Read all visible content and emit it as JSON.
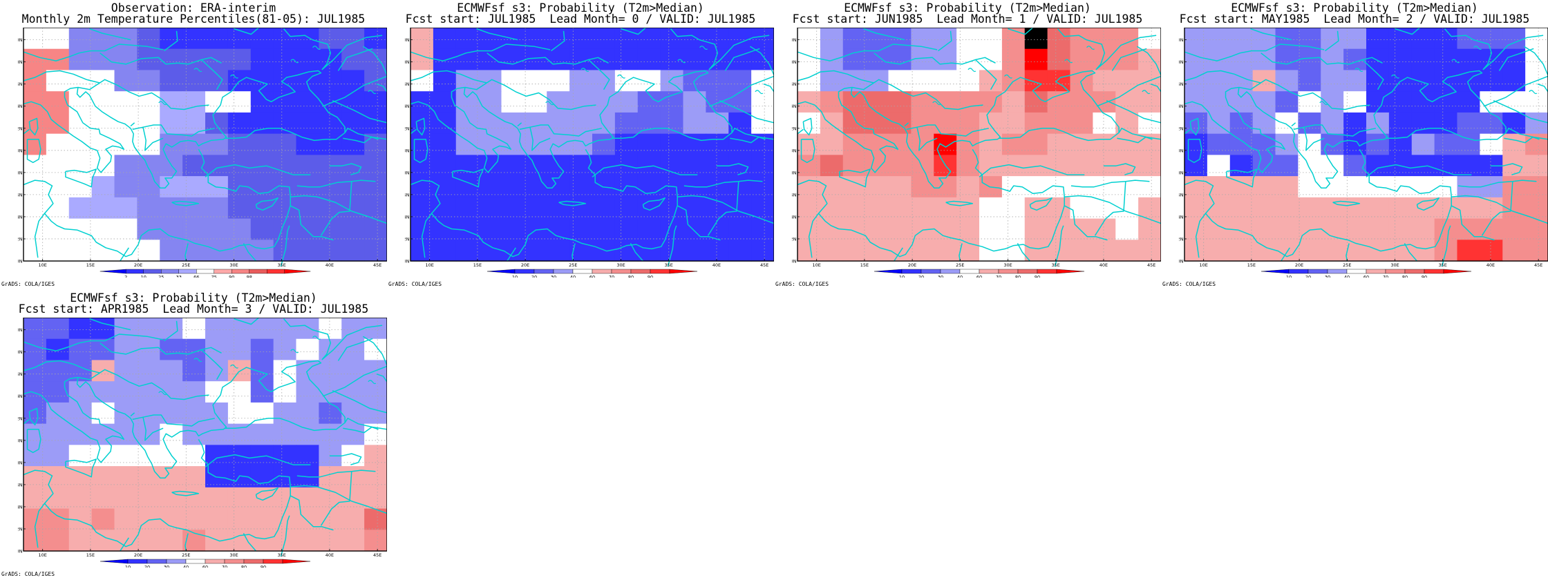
{
  "colors": {
    "scale_obs": [
      "#0000ff",
      "#3333ff",
      "#5c5ce9",
      "#8585f1",
      "#aaaaff",
      "#ffffff",
      "#ffaaaa",
      "#f78585",
      "#e95c5c",
      "#ff3333",
      "#ff0000"
    ],
    "scale_prob": [
      "#0000ff",
      "#3333ff",
      "#6363f3",
      "#9c9cf7",
      "#ffffff",
      "#f7adad",
      "#f48e8e",
      "#ec6b6b",
      "#ff3333",
      "#ff0000"
    ],
    "coast": "#00d0d0",
    "grid": "#a8a8a8"
  },
  "lat_labels": [
    "30N",
    "32N",
    "34N",
    "36N",
    "38N",
    "40N",
    "42N",
    "44N",
    "46N",
    "48N",
    "50N"
  ],
  "lon_labels": [
    "10E",
    "15E",
    "20E",
    "25E",
    "30E",
    "35E",
    "40E",
    "45E"
  ],
  "panels": [
    {
      "id": "obs",
      "title1": "Observation: ERA-interim",
      "title2": "Monthly 2m Temperature Percentiles(81-05): JUL1985",
      "credit": "GrADS: COLA/IGES",
      "legend": [
        "2",
        "10",
        "25",
        "33",
        "66",
        "75",
        "90",
        "98"
      ],
      "scale": "obs",
      "grid": [
        [
          5,
          5,
          3,
          3,
          3,
          2,
          1,
          1,
          1,
          1,
          1,
          1,
          1,
          2,
          2,
          1
        ],
        [
          7,
          7,
          3,
          3,
          3,
          2,
          2,
          2,
          2,
          2,
          1,
          1,
          1,
          1,
          2,
          2
        ],
        [
          7,
          5,
          5,
          5,
          3,
          3,
          2,
          2,
          2,
          1,
          1,
          1,
          1,
          1,
          1,
          2
        ],
        [
          7,
          7,
          5,
          5,
          5,
          5,
          4,
          4,
          5,
          5,
          1,
          1,
          1,
          1,
          1,
          1
        ],
        [
          7,
          7,
          5,
          5,
          5,
          5,
          4,
          4,
          2,
          1,
          1,
          1,
          1,
          1,
          1,
          1
        ],
        [
          7,
          5,
          5,
          5,
          5,
          5,
          3,
          3,
          3,
          2,
          2,
          2,
          1,
          1,
          1,
          2
        ],
        [
          5,
          5,
          5,
          5,
          3,
          3,
          3,
          2,
          2,
          2,
          2,
          2,
          2,
          2,
          2,
          2
        ],
        [
          5,
          5,
          5,
          4,
          3,
          3,
          4,
          4,
          4,
          2,
          2,
          2,
          2,
          2,
          2,
          2
        ],
        [
          5,
          5,
          4,
          4,
          4,
          3,
          3,
          3,
          3,
          2,
          2,
          2,
          2,
          2,
          2,
          2
        ],
        [
          5,
          5,
          5,
          5,
          5,
          3,
          3,
          3,
          3,
          3,
          2,
          2,
          2,
          2,
          2,
          2
        ],
        [
          5,
          5,
          5,
          5,
          5,
          5,
          3,
          3,
          3,
          3,
          3,
          2,
          2,
          2,
          2,
          2
        ]
      ]
    },
    {
      "id": "lead0",
      "title1": "ECMWFsf s3: Probability (T2m>Median)",
      "title2": "Fcst start: JUL1985  Lead Month= 0 / VALID: JUL1985",
      "credit": "GrADS: COLA/IGES",
      "legend": [
        "10",
        "20",
        "30",
        "40",
        "60",
        "70",
        "80",
        "90"
      ],
      "scale": "prob",
      "grid": [
        [
          5,
          1,
          1,
          1,
          1,
          1,
          1,
          1,
          1,
          1,
          1,
          1,
          1,
          1,
          1,
          1
        ],
        [
          5,
          1,
          1,
          1,
          1,
          1,
          1,
          1,
          1,
          1,
          1,
          1,
          1,
          1,
          1,
          1
        ],
        [
          4,
          1,
          3,
          3,
          4,
          4,
          4,
          3,
          3,
          4,
          4,
          3,
          2,
          2,
          2,
          4
        ],
        [
          1,
          1,
          3,
          3,
          4,
          4,
          3,
          3,
          3,
          3,
          2,
          2,
          3,
          2,
          2,
          4
        ],
        [
          1,
          1,
          3,
          3,
          3,
          3,
          3,
          3,
          3,
          2,
          2,
          2,
          3,
          3,
          1,
          4
        ],
        [
          1,
          1,
          3,
          3,
          3,
          3,
          3,
          3,
          2,
          1,
          1,
          1,
          1,
          1,
          1,
          1
        ],
        [
          1,
          1,
          1,
          1,
          1,
          1,
          1,
          1,
          1,
          1,
          1,
          1,
          1,
          1,
          1,
          1
        ],
        [
          1,
          1,
          1,
          1,
          1,
          1,
          1,
          1,
          1,
          1,
          1,
          1,
          1,
          1,
          1,
          1
        ],
        [
          1,
          1,
          1,
          1,
          1,
          1,
          1,
          1,
          1,
          1,
          1,
          1,
          1,
          1,
          1,
          1
        ],
        [
          1,
          1,
          1,
          1,
          1,
          1,
          1,
          1,
          1,
          1,
          1,
          1,
          1,
          1,
          1,
          1
        ],
        [
          1,
          1,
          1,
          1,
          1,
          1,
          1,
          1,
          1,
          1,
          1,
          1,
          1,
          1,
          1,
          1
        ]
      ]
    },
    {
      "id": "lead1",
      "title1": "ECMWFsf s3: Probability (T2m>Median)",
      "title2": "Fcst start: JUN1985  Lead Month= 1 / VALID: JUL1985",
      "credit": "GrADS: COLA/IGES",
      "legend": [
        "10",
        "20",
        "30",
        "40",
        "60",
        "70",
        "80",
        "90"
      ],
      "scale": "prob",
      "grid": [
        [
          4,
          3,
          2,
          2,
          2,
          3,
          3,
          4,
          4,
          6,
          10,
          7,
          6,
          6,
          6,
          4
        ],
        [
          4,
          3,
          2,
          2,
          2,
          3,
          3,
          4,
          4,
          6,
          9,
          7,
          6,
          6,
          6,
          5
        ],
        [
          4,
          3,
          3,
          3,
          4,
          4,
          4,
          4,
          5,
          6,
          8,
          8,
          6,
          5,
          5,
          5
        ],
        [
          5,
          6,
          7,
          7,
          7,
          6,
          6,
          6,
          6,
          5,
          7,
          6,
          6,
          6,
          5,
          5
        ],
        [
          4,
          5,
          7,
          7,
          7,
          6,
          6,
          6,
          5,
          5,
          6,
          6,
          6,
          4,
          5,
          4
        ],
        [
          5,
          5,
          6,
          6,
          6,
          6,
          9,
          6,
          5,
          6,
          6,
          5,
          5,
          5,
          5,
          5
        ],
        [
          6,
          7,
          6,
          6,
          6,
          6,
          8,
          6,
          5,
          5,
          5,
          5,
          5,
          5,
          5,
          5
        ],
        [
          5,
          5,
          5,
          5,
          5,
          6,
          6,
          5,
          6,
          4,
          4,
          4,
          4,
          4,
          4,
          4
        ],
        [
          5,
          5,
          5,
          5,
          5,
          5,
          5,
          5,
          4,
          4,
          5,
          5,
          4,
          4,
          4,
          5
        ],
        [
          5,
          5,
          5,
          5,
          5,
          5,
          5,
          5,
          4,
          4,
          5,
          5,
          5,
          5,
          4,
          5
        ],
        [
          5,
          5,
          5,
          5,
          5,
          5,
          5,
          5,
          4,
          4,
          5,
          5,
          5,
          5,
          5,
          5
        ]
      ]
    },
    {
      "id": "lead2",
      "title1": "ECMWFsf s3: Probability (T2m>Median)",
      "title2": "Fcst start: MAY1985  Lead Month= 2 / VALID: JUL1985",
      "credit": "GrADS: COLA/IGES",
      "legend": [
        "10",
        "20",
        "30",
        "40",
        "60",
        "70",
        "80",
        "90"
      ],
      "scale": "prob",
      "grid": [
        [
          3,
          3,
          3,
          3,
          2,
          2,
          3,
          3,
          1,
          1,
          1,
          1,
          2,
          2,
          2,
          4
        ],
        [
          3,
          3,
          3,
          3,
          2,
          2,
          3,
          2,
          1,
          1,
          1,
          1,
          1,
          1,
          1,
          4
        ],
        [
          3,
          3,
          3,
          5,
          3,
          2,
          3,
          3,
          1,
          1,
          1,
          1,
          1,
          1,
          1,
          4
        ],
        [
          3,
          3,
          3,
          3,
          2,
          4,
          3,
          4,
          1,
          1,
          1,
          1,
          1,
          4,
          4,
          4
        ],
        [
          2,
          3,
          2,
          3,
          4,
          2,
          3,
          1,
          3,
          1,
          1,
          1,
          2,
          2,
          1,
          3
        ],
        [
          1,
          2,
          2,
          2,
          3,
          4,
          2,
          1,
          2,
          1,
          3,
          2,
          2,
          4,
          5,
          6
        ],
        [
          1,
          4,
          1,
          2,
          2,
          4,
          4,
          2,
          1,
          1,
          1,
          1,
          1,
          1,
          5,
          5
        ],
        [
          5,
          5,
          5,
          5,
          5,
          4,
          4,
          4,
          4,
          4,
          4,
          4,
          3,
          3,
          6,
          6
        ],
        [
          5,
          5,
          5,
          5,
          5,
          5,
          5,
          5,
          5,
          5,
          5,
          5,
          5,
          5,
          6,
          6
        ],
        [
          5,
          5,
          5,
          5,
          5,
          5,
          5,
          5,
          5,
          5,
          5,
          6,
          6,
          6,
          6,
          6
        ],
        [
          5,
          5,
          5,
          5,
          5,
          5,
          5,
          5,
          5,
          5,
          5,
          6,
          8,
          8,
          6,
          6
        ]
      ]
    },
    {
      "id": "lead3",
      "title1": "ECMWFsf s3: Probability (T2m>Median)",
      "title2": "Fcst start: APR1985  Lead Month= 3 / VALID: JUL1985",
      "credit": "GrADS: COLA/IGES",
      "legend": [
        "10",
        "20",
        "30",
        "40",
        "60",
        "70",
        "80",
        "90"
      ],
      "scale": "prob",
      "grid": [
        [
          2,
          2,
          1,
          1,
          3,
          3,
          3,
          4,
          3,
          3,
          3,
          3,
          3,
          4,
          3,
          3
        ],
        [
          2,
          1,
          2,
          2,
          3,
          3,
          2,
          2,
          3,
          3,
          2,
          3,
          4,
          3,
          3,
          4
        ],
        [
          2,
          2,
          2,
          5,
          3,
          3,
          3,
          2,
          3,
          5,
          2,
          4,
          3,
          3,
          3,
          3
        ],
        [
          2,
          2,
          3,
          3,
          3,
          3,
          3,
          3,
          4,
          4,
          2,
          4,
          3,
          3,
          3,
          3
        ],
        [
          2,
          3,
          3,
          4,
          3,
          3,
          3,
          3,
          3,
          4,
          4,
          3,
          3,
          2,
          3,
          3
        ],
        [
          3,
          3,
          3,
          3,
          3,
          3,
          4,
          3,
          3,
          3,
          3,
          3,
          3,
          3,
          3,
          4
        ],
        [
          3,
          3,
          4,
          4,
          4,
          4,
          4,
          4,
          1,
          1,
          1,
          1,
          1,
          3,
          4,
          5
        ],
        [
          5,
          5,
          5,
          5,
          5,
          5,
          5,
          5,
          1,
          1,
          1,
          1,
          1,
          5,
          5,
          5
        ],
        [
          5,
          5,
          5,
          5,
          5,
          5,
          5,
          5,
          5,
          5,
          5,
          5,
          5,
          5,
          5,
          5
        ],
        [
          6,
          6,
          5,
          6,
          5,
          5,
          5,
          5,
          5,
          5,
          5,
          5,
          5,
          5,
          5,
          7
        ],
        [
          6,
          6,
          5,
          5,
          5,
          5,
          5,
          6,
          5,
          5,
          5,
          5,
          5,
          5,
          5,
          6
        ]
      ]
    }
  ]
}
